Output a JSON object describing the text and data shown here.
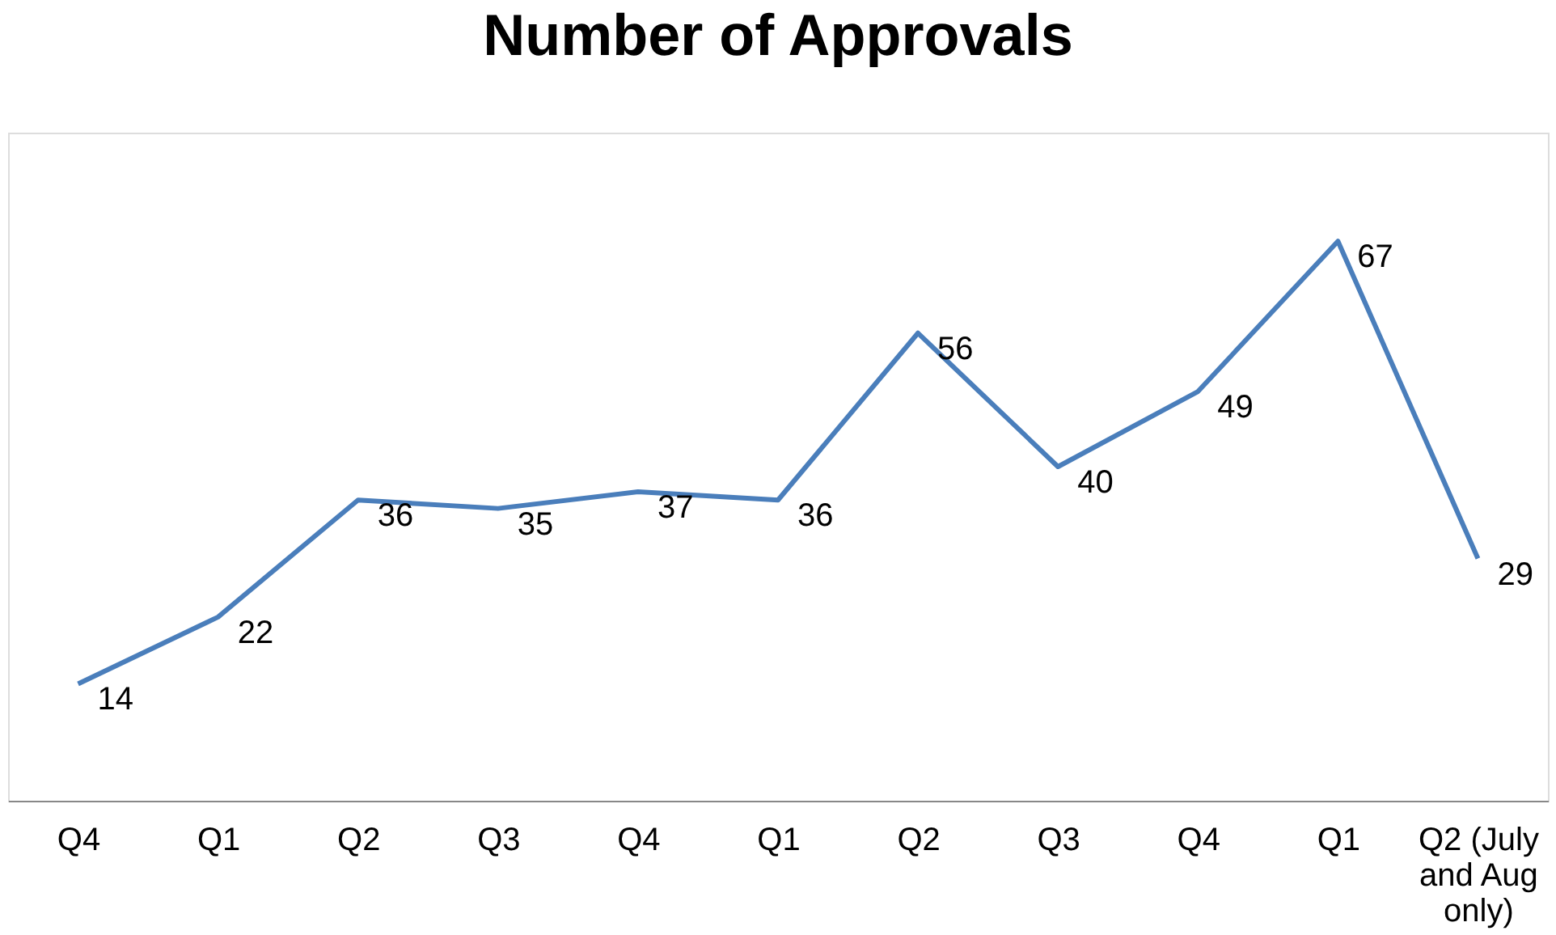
{
  "chart_data": {
    "type": "line",
    "title": "Number of Approvals",
    "categories": [
      "Q4",
      "Q1",
      "Q2",
      "Q3",
      "Q4",
      "Q1",
      "Q2",
      "Q3",
      "Q4",
      "Q1",
      "Q2 (July and Aug only)"
    ],
    "series": [
      {
        "color": "#4a7ebb",
        "values": [
          14,
          22,
          36,
          35,
          37,
          36,
          56,
          40,
          49,
          67,
          29
        ]
      }
    ],
    "ylim": [
      0,
      80
    ],
    "tick_labels": "x",
    "data_labels": true
  }
}
